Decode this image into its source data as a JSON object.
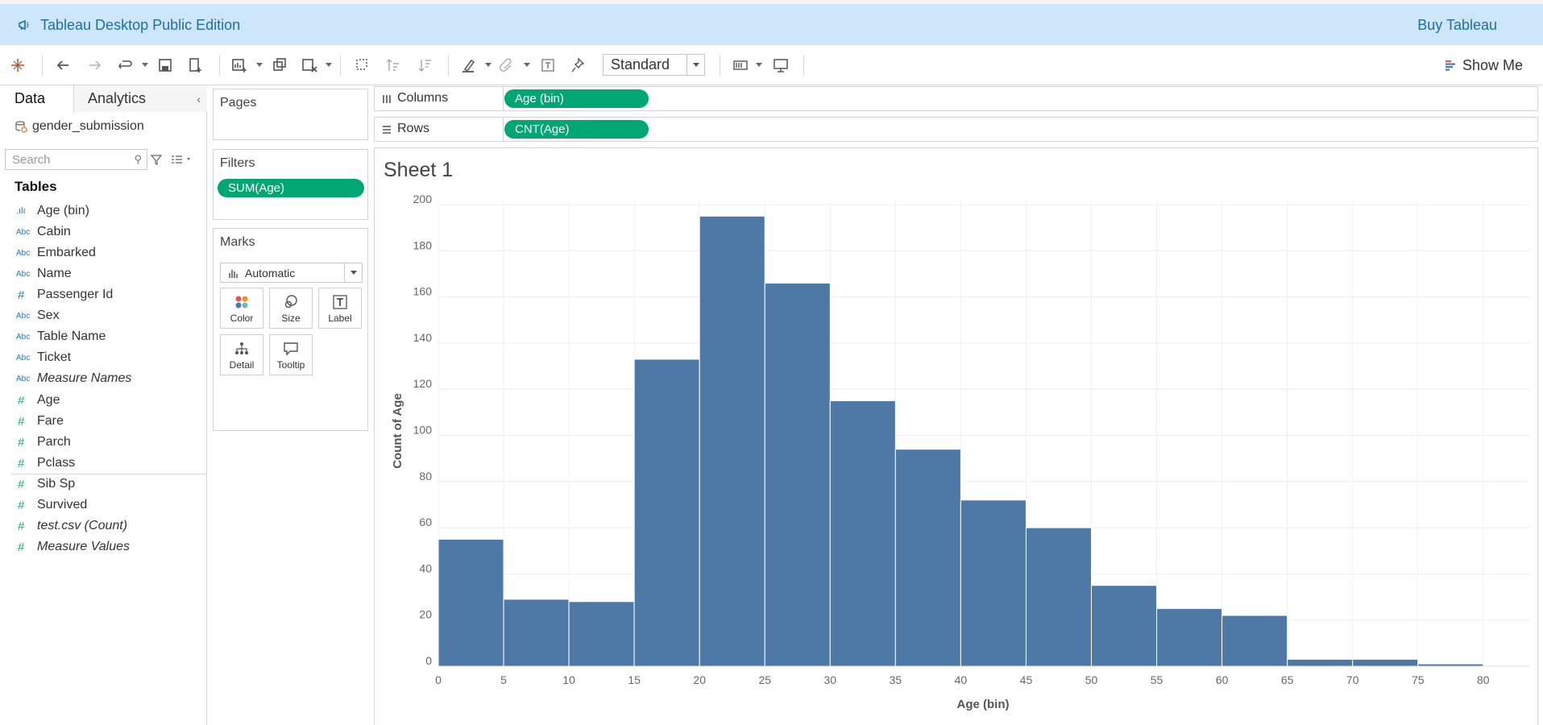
{
  "banner": {
    "title": "Tableau Desktop Public Edition",
    "buy_label": "Buy Tableau"
  },
  "toolbar": {
    "mark_size_select": "Standard",
    "show_me_label": "Show Me"
  },
  "data_pane": {
    "tabs": [
      "Data",
      "Analytics"
    ],
    "datasource": "gender_submission",
    "search_placeholder": "Search",
    "tables_heading": "Tables",
    "dimensions": [
      {
        "type": "bin",
        "type_glyph": ".ılı",
        "name": "Age (bin)"
      },
      {
        "type": "string",
        "type_glyph": "Abc",
        "name": "Cabin"
      },
      {
        "type": "string",
        "type_glyph": "Abc",
        "name": "Embarked"
      },
      {
        "type": "string",
        "type_glyph": "Abc",
        "name": "Name"
      },
      {
        "type": "number",
        "type_glyph": "#",
        "name": "Passenger Id"
      },
      {
        "type": "string",
        "type_glyph": "Abc",
        "name": "Sex"
      },
      {
        "type": "string",
        "type_glyph": "Abc",
        "name": "Table Name"
      },
      {
        "type": "string",
        "type_glyph": "Abc",
        "name": "Ticket"
      },
      {
        "type": "string",
        "type_glyph": "Abc",
        "name": "Measure Names",
        "italic": true
      }
    ],
    "measures": [
      {
        "type_glyph": "#",
        "name": "Age"
      },
      {
        "type_glyph": "#",
        "name": "Fare"
      },
      {
        "type_glyph": "#",
        "name": "Parch"
      },
      {
        "type_glyph": "#",
        "name": "Pclass"
      },
      {
        "type_glyph": "#",
        "name": "Sib Sp"
      },
      {
        "type_glyph": "#",
        "name": "Survived"
      },
      {
        "type_glyph": "#",
        "name": "test.csv (Count)",
        "italic": true
      },
      {
        "type_glyph": "#",
        "name": "Measure Values",
        "italic": true
      }
    ]
  },
  "cards": {
    "pages_title": "Pages",
    "filters_title": "Filters",
    "filter_pill": "SUM(Age)",
    "marks_title": "Marks",
    "marks_type": "Automatic",
    "mark_buttons": [
      "Color",
      "Size",
      "Label",
      "Detail",
      "Tooltip"
    ]
  },
  "shelves": {
    "columns_label": "Columns",
    "columns_pill": "Age (bin)",
    "rows_label": "Rows",
    "rows_pill": "CNT(Age)"
  },
  "sheet": {
    "title": "Sheet 1"
  },
  "colors": {
    "banner_bg": "#cde6fa",
    "pill_green": "#00a773",
    "bar_blue": "#4e79a7"
  },
  "chart_data": {
    "type": "bar",
    "xlabel": "Age (bin)",
    "ylabel": "Count of Age",
    "x_ticks": [
      0,
      5,
      10,
      15,
      20,
      25,
      30,
      35,
      40,
      45,
      50,
      55,
      60,
      65,
      70,
      75,
      80
    ],
    "y_ticks": [
      0,
      20,
      40,
      60,
      80,
      100,
      120,
      140,
      160,
      180,
      200
    ],
    "ylim": [
      0,
      200
    ],
    "bin_width": 5,
    "categories": [
      0,
      5,
      10,
      15,
      20,
      25,
      30,
      35,
      40,
      45,
      50,
      55,
      60,
      65,
      70,
      75
    ],
    "values": [
      55,
      29,
      28,
      133,
      195,
      166,
      115,
      94,
      72,
      60,
      35,
      25,
      22,
      3,
      3,
      1
    ],
    "grid": true,
    "legend": "none"
  }
}
